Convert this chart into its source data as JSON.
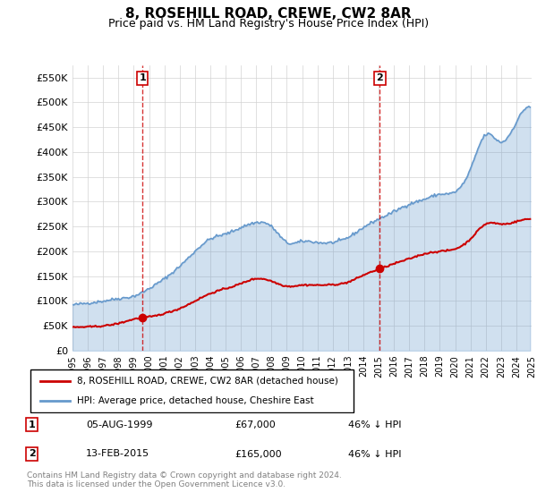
{
  "title": "8, ROSEHILL ROAD, CREWE, CW2 8AR",
  "subtitle": "Price paid vs. HM Land Registry's House Price Index (HPI)",
  "red_label": "8, ROSEHILL ROAD, CREWE, CW2 8AR (detached house)",
  "blue_label": "HPI: Average price, detached house, Cheshire East",
  "marker1_date": "05-AUG-1999",
  "marker1_price": 67000,
  "marker1_pct": "46% ↓ HPI",
  "marker2_date": "13-FEB-2015",
  "marker2_price": 165000,
  "marker2_pct": "46% ↓ HPI",
  "red_color": "#cc0000",
  "blue_color": "#6699cc",
  "background_color": "#ffffff",
  "footer": "Contains HM Land Registry data © Crown copyright and database right 2024.\nThis data is licensed under the Open Government Licence v3.0.",
  "ylim": [
    0,
    575000
  ],
  "yticks": [
    0,
    50000,
    100000,
    150000,
    200000,
    250000,
    300000,
    350000,
    400000,
    450000,
    500000,
    550000
  ]
}
